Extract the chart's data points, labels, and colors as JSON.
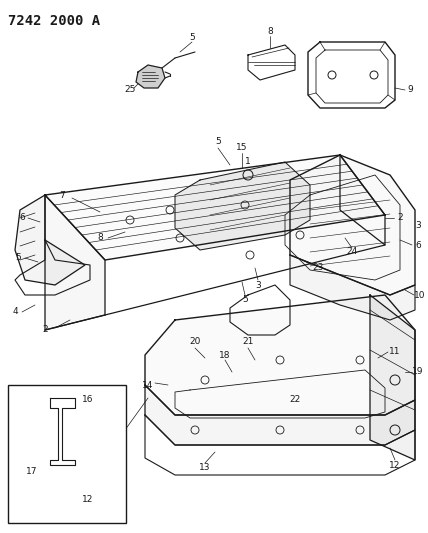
{
  "title": "7242 2000 A",
  "bg_color": "#ffffff",
  "fig_width": 4.28,
  "fig_height": 5.33,
  "dpi": 100,
  "line_color": "#1a1a1a",
  "label_fontsize": 6.5,
  "title_fontsize": 10
}
